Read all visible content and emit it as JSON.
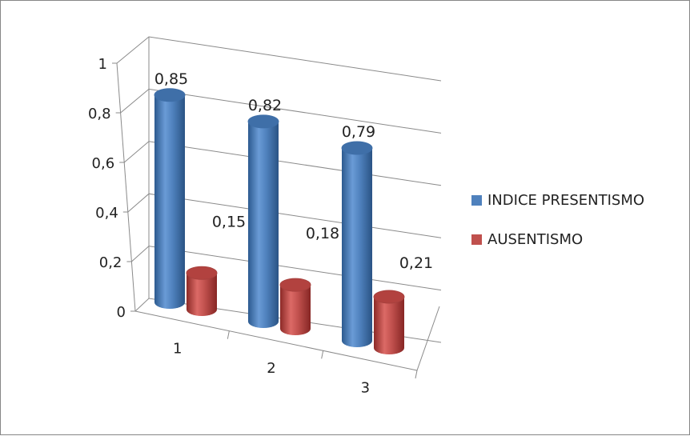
{
  "chart_data": {
    "type": "bar",
    "categories": [
      "1",
      "2",
      "3"
    ],
    "series": [
      {
        "name": "INDICE PRESENTISMO",
        "values": [
          0.85,
          0.82,
          0.79
        ],
        "labels": [
          "0,85",
          "0,82",
          "0,79"
        ],
        "color": "#4f81bd"
      },
      {
        "name": "AUSENTISMO",
        "values": [
          0.15,
          0.18,
          0.21
        ],
        "labels": [
          "0,15",
          "0,18",
          "0,21"
        ],
        "color": "#c0504d"
      }
    ],
    "y_ticks": [
      0,
      0.2,
      0.4,
      0.6,
      0.8,
      1
    ],
    "y_tick_labels": [
      "0",
      "0,2",
      "0,4",
      "0,6",
      "0,8",
      "1"
    ],
    "ylim": [
      0,
      1
    ],
    "grid": true,
    "legend_position": "right",
    "style": "3d-cylinder"
  }
}
